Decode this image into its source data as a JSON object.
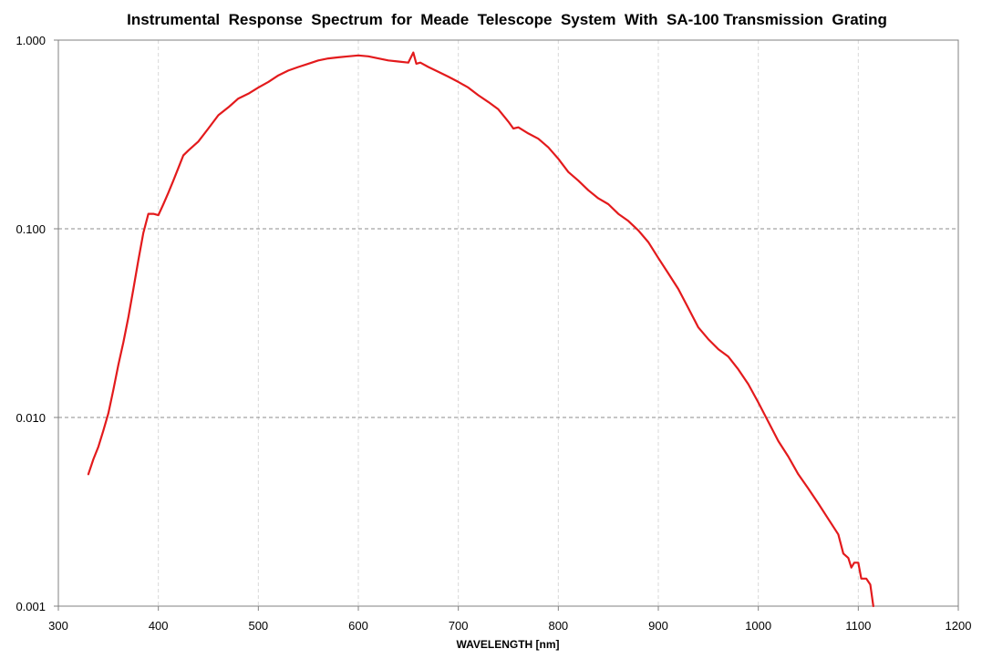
{
  "chart_data": {
    "type": "line",
    "title": "Instrumental  Response  Spectrum  for  Meade  Telescope  System  With  SA-100 Transmission  Grating",
    "xlabel": "WAVELENGTH [nm]",
    "ylabel": "",
    "xlim": [
      300,
      1200
    ],
    "ylim": [
      0.001,
      1.0
    ],
    "y_scale": "log",
    "x_ticks": [
      300,
      400,
      500,
      600,
      700,
      800,
      900,
      1000,
      1100,
      1200
    ],
    "x_tick_labels": [
      "300",
      "400",
      "500",
      "600",
      "700",
      "800",
      "900",
      "1000",
      "1100",
      "1200"
    ],
    "y_ticks": [
      0.001,
      0.01,
      0.1,
      1.0
    ],
    "y_tick_labels": [
      "0.001",
      "0.010",
      "0.100",
      "1.000"
    ],
    "grid": {
      "x": "dashed-light",
      "y": "dashed"
    },
    "legend": "none",
    "line_color": "#e31a1c",
    "series": [
      {
        "x": [
          330,
          335,
          340,
          345,
          350,
          355,
          360,
          365,
          370,
          375,
          380,
          385,
          390,
          395,
          400,
          405,
          410,
          415,
          420,
          425,
          430,
          440,
          450,
          460,
          470,
          480,
          490,
          500,
          510,
          520,
          530,
          540,
          550,
          560,
          570,
          580,
          590,
          600,
          610,
          620,
          630,
          640,
          650,
          655,
          658,
          662,
          670,
          680,
          690,
          700,
          710,
          720,
          730,
          740,
          750,
          755,
          760,
          770,
          780,
          790,
          800,
          810,
          820,
          830,
          840,
          850,
          860,
          870,
          880,
          890,
          900,
          910,
          920,
          930,
          940,
          950,
          960,
          970,
          980,
          990,
          1000,
          1010,
          1020,
          1030,
          1040,
          1050,
          1060,
          1070,
          1080,
          1085,
          1090,
          1093,
          1096,
          1100,
          1103,
          1108,
          1112,
          1115
        ],
        "values": [
          0.005,
          0.006,
          0.007,
          0.0085,
          0.0105,
          0.014,
          0.019,
          0.025,
          0.034,
          0.048,
          0.068,
          0.095,
          0.12,
          0.12,
          0.118,
          0.135,
          0.155,
          0.18,
          0.21,
          0.245,
          0.26,
          0.29,
          0.34,
          0.4,
          0.44,
          0.49,
          0.52,
          0.56,
          0.6,
          0.65,
          0.69,
          0.72,
          0.75,
          0.78,
          0.8,
          0.81,
          0.82,
          0.83,
          0.82,
          0.8,
          0.78,
          0.77,
          0.76,
          0.86,
          0.75,
          0.76,
          0.72,
          0.68,
          0.64,
          0.6,
          0.56,
          0.51,
          0.47,
          0.43,
          0.37,
          0.34,
          0.345,
          0.32,
          0.3,
          0.27,
          0.235,
          0.2,
          0.18,
          0.16,
          0.145,
          0.135,
          0.12,
          0.11,
          0.098,
          0.085,
          0.07,
          0.058,
          0.048,
          0.038,
          0.03,
          0.026,
          0.023,
          0.021,
          0.018,
          0.015,
          0.012,
          0.0095,
          0.0075,
          0.0062,
          0.005,
          0.0042,
          0.0035,
          0.0029,
          0.0024,
          0.0019,
          0.0018,
          0.0016,
          0.0017,
          0.0017,
          0.0014,
          0.0014,
          0.0013,
          0.001
        ]
      }
    ]
  }
}
